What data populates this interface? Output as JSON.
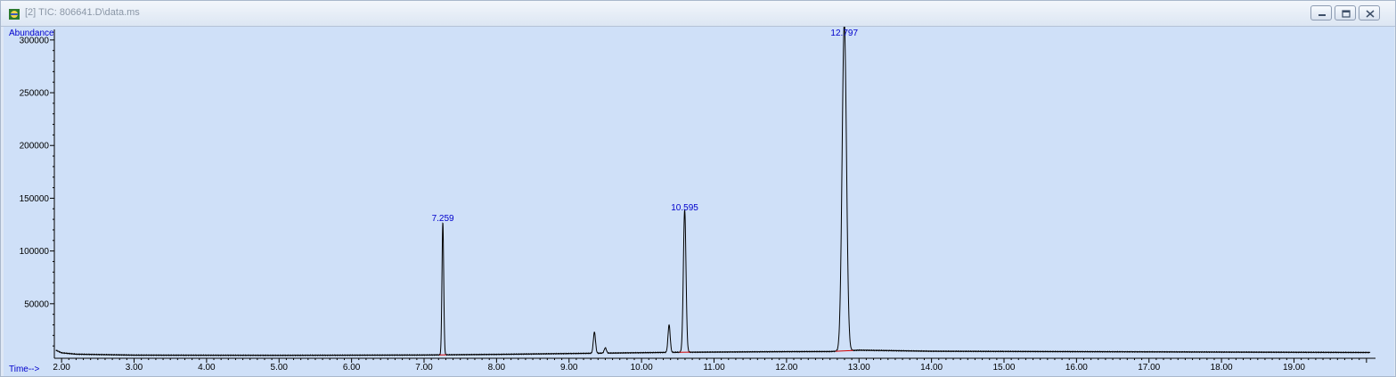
{
  "window": {
    "title": "[2] TIC: 806641.D\\data.ms",
    "icon": "chromatogram-app-icon",
    "buttons": [
      "minimize",
      "restore",
      "close"
    ]
  },
  "chart_data": {
    "type": "line",
    "ylabel": "Abundance",
    "xlabel": "Time-->",
    "xlim": [
      1.9,
      20.1
    ],
    "ylim": [
      0,
      310000
    ],
    "x_ticks": [
      "2.00",
      "3.00",
      "4.00",
      "5.00",
      "6.00",
      "7.00",
      "8.00",
      "9.00",
      "10.00",
      "11.00",
      "12.00",
      "13.00",
      "14.00",
      "15.00",
      "16.00",
      "17.00",
      "18.00",
      "19.00"
    ],
    "y_ticks": [
      "50000",
      "100000",
      "150000",
      "200000",
      "250000",
      "300000"
    ],
    "grid": false,
    "line_color": "#000000",
    "baseline_color": "#d40000",
    "label_color": "#0000cc",
    "background": "#cfe0f8",
    "peaks": [
      {
        "rt": 7.259,
        "height": 125000,
        "label": "7.259"
      },
      {
        "rt": 9.35,
        "height": 20000,
        "label": ""
      },
      {
        "rt": 9.5,
        "height": 5000,
        "label": ""
      },
      {
        "rt": 10.38,
        "height": 26000,
        "label": ""
      },
      {
        "rt": 10.595,
        "height": 135000,
        "label": "10.595"
      },
      {
        "rt": 12.797,
        "height": 311000,
        "label": "12.797"
      }
    ],
    "baseline_points": [
      [
        1.92,
        6000
      ],
      [
        2.0,
        3500
      ],
      [
        2.2,
        2200
      ],
      [
        3.0,
        1300
      ],
      [
        5.0,
        1100
      ],
      [
        7.0,
        1400
      ],
      [
        8.0,
        2000
      ],
      [
        9.0,
        2800
      ],
      [
        10.0,
        3600
      ],
      [
        10.5,
        4000
      ],
      [
        11.0,
        4200
      ],
      [
        12.0,
        4600
      ],
      [
        12.6,
        4700
      ],
      [
        13.0,
        6000
      ],
      [
        14.0,
        5000
      ],
      [
        16.0,
        4600
      ],
      [
        18.0,
        4200
      ],
      [
        20.05,
        3800
      ]
    ]
  }
}
